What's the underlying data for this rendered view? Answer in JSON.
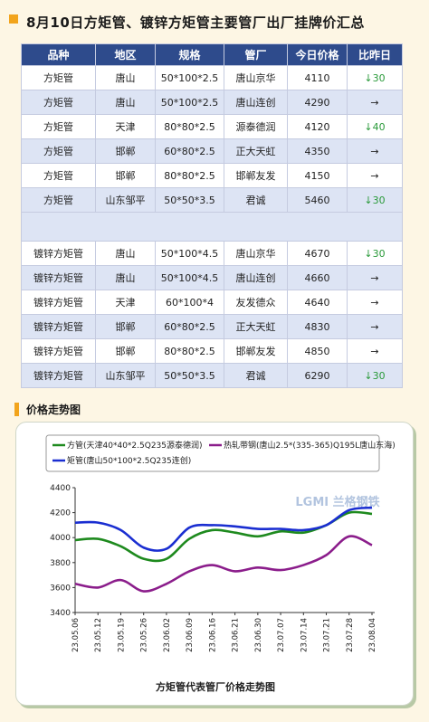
{
  "header": {
    "title": "8月10日方矩管、镀锌方矩管主要管厂出厂挂牌价汇总"
  },
  "table": {
    "columns": [
      "品种",
      "地区",
      "规格",
      "管厂",
      "今日价格",
      "比昨日"
    ],
    "rows": [
      {
        "product": "方矩管",
        "region": "唐山",
        "spec": "50*100*2.5",
        "mill": "唐山京华",
        "price": "4110",
        "change": "↓30",
        "trend": "down"
      },
      {
        "product": "方矩管",
        "region": "唐山",
        "spec": "50*100*2.5",
        "mill": "唐山连创",
        "price": "4290",
        "change": "→",
        "trend": "flat"
      },
      {
        "product": "方矩管",
        "region": "天津",
        "spec": "80*80*2.5",
        "mill": "源泰德润",
        "price": "4120",
        "change": "↓40",
        "trend": "down"
      },
      {
        "product": "方矩管",
        "region": "邯郸",
        "spec": "60*80*2.5",
        "mill": "正大天虹",
        "price": "4350",
        "change": "→",
        "trend": "flat"
      },
      {
        "product": "方矩管",
        "region": "邯郸",
        "spec": "80*80*2.5",
        "mill": "邯郸友发",
        "price": "4150",
        "change": "→",
        "trend": "flat"
      },
      {
        "product": "方矩管",
        "region": "山东邹平",
        "spec": "50*50*3.5",
        "mill": "君诚",
        "price": "5460",
        "change": "↓30",
        "trend": "down"
      }
    ],
    "rows2": [
      {
        "product": "镀锌方矩管",
        "region": "唐山",
        "spec": "50*100*4.5",
        "mill": "唐山京华",
        "price": "4670",
        "change": "↓30",
        "trend": "down"
      },
      {
        "product": "镀锌方矩管",
        "region": "唐山",
        "spec": "50*100*4.5",
        "mill": "唐山连创",
        "price": "4660",
        "change": "→",
        "trend": "flat"
      },
      {
        "product": "镀锌方矩管",
        "region": "天津",
        "spec": "60*100*4",
        "mill": "友发德众",
        "price": "4640",
        "change": "→",
        "trend": "flat"
      },
      {
        "product": "镀锌方矩管",
        "region": "邯郸",
        "spec": "60*80*2.5",
        "mill": "正大天虹",
        "price": "4830",
        "change": "→",
        "trend": "flat"
      },
      {
        "product": "镀锌方矩管",
        "region": "邯郸",
        "spec": "80*80*2.5",
        "mill": "邯郸友发",
        "price": "4850",
        "change": "→",
        "trend": "flat"
      },
      {
        "product": "镀锌方矩管",
        "region": "山东邹平",
        "spec": "50*50*3.5",
        "mill": "君诚",
        "price": "6290",
        "change": "↓30",
        "trend": "down"
      }
    ],
    "colors": {
      "header_bg": "#2e4b8c",
      "row_alt": "#dde4f4",
      "down": "#2a9a3a"
    }
  },
  "section": {
    "title": "价格走势图"
  },
  "chart_data": {
    "type": "line",
    "title": "方矩管代表管厂价格走势图",
    "watermark": "LGMI 兰格钢铁",
    "x": [
      "23.05.06",
      "23.05.12",
      "23.05.19",
      "23.05.26",
      "23.06.02",
      "23.06.09",
      "23.06.16",
      "23.06.21",
      "23.06.30",
      "23.07.07",
      "23.07.14",
      "23.07.21",
      "23.07.28",
      "23.08.04"
    ],
    "ylim": [
      3400,
      4400
    ],
    "yticks": [
      3400,
      3600,
      3800,
      4000,
      4200,
      4400
    ],
    "series": [
      {
        "name": "方管(天津40*40*2.5Q235源泰德润)",
        "color": "#1e8a1e",
        "values": [
          3980,
          3990,
          3930,
          3830,
          3830,
          3990,
          4060,
          4040,
          4010,
          4050,
          4040,
          4100,
          4200,
          4190
        ]
      },
      {
        "name": "矩管(唐山50*100*2.5Q235连创)",
        "color": "#1a2ed1",
        "values": [
          4120,
          4120,
          4060,
          3920,
          3910,
          4080,
          4100,
          4090,
          4070,
          4070,
          4060,
          4100,
          4220,
          4240
        ]
      },
      {
        "name": "热轧带钢(唐山2.5*(335-365)Q195L唐山东海)",
        "color": "#8b1d8b",
        "values": [
          3630,
          3600,
          3660,
          3570,
          3630,
          3730,
          3780,
          3730,
          3760,
          3740,
          3780,
          3860,
          4010,
          3940
        ]
      }
    ],
    "colors": {
      "axis": "#333333",
      "plot_bg": "#ffffff"
    }
  }
}
